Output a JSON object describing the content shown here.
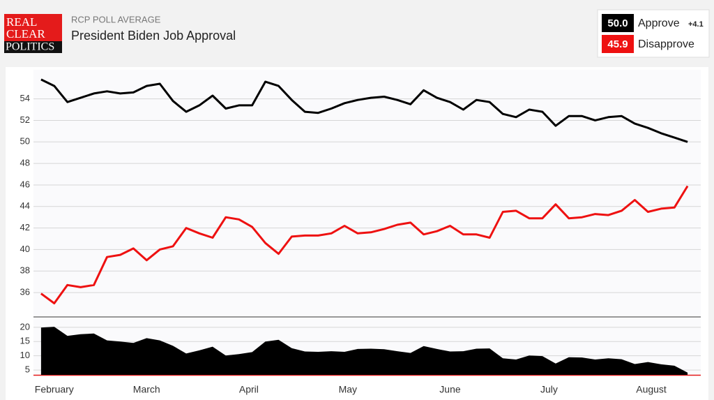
{
  "header": {
    "logo": [
      "REAL",
      "CLEAR",
      "POLITICS"
    ],
    "kicker": "RCP POLL AVERAGE"
  },
  "chart_data": [
    {
      "type": "line",
      "title": "President Biden Job Approval",
      "spread_label": "+4.1",
      "x": [
        -4,
        0,
        4,
        8,
        12,
        16,
        20,
        24,
        28,
        32,
        36,
        40,
        44,
        48,
        52,
        56,
        60,
        64,
        68,
        72,
        76,
        80,
        84,
        88,
        92,
        96,
        100,
        104,
        108,
        112,
        116,
        120,
        124,
        128,
        132,
        136,
        140,
        144,
        148,
        152,
        156,
        160,
        164,
        168,
        172,
        176,
        180,
        184,
        188,
        192
      ],
      "xlim": [
        -6.3,
        196
      ],
      "ylim": [
        33.8,
        56.7
      ],
      "yticks": [
        36,
        38,
        40,
        42,
        44,
        46,
        48,
        50,
        52,
        54
      ],
      "grid": true,
      "series": [
        {
          "name": "Approve",
          "color": "#000000",
          "current_label": "50.0",
          "values": [
            55.8,
            55.2,
            53.7,
            54.1,
            54.5,
            54.7,
            54.5,
            54.6,
            55.2,
            55.4,
            53.8,
            52.8,
            53.4,
            54.3,
            53.1,
            53.4,
            53.4,
            55.6,
            55.2,
            53.9,
            52.8,
            52.7,
            53.1,
            53.6,
            53.9,
            54.1,
            54.2,
            53.9,
            53.5,
            54.8,
            54.1,
            53.7,
            53.0,
            53.9,
            53.7,
            52.6,
            52.3,
            53.0,
            52.8,
            51.5,
            52.4,
            52.4,
            52.0,
            52.3,
            52.4,
            51.7,
            51.3,
            50.8,
            50.4,
            50.0
          ]
        },
        {
          "name": "Disapprove",
          "color": "#ee1111",
          "current_label": "45.9",
          "values": [
            35.9,
            35.0,
            36.7,
            36.5,
            36.7,
            39.3,
            39.5,
            40.1,
            39.0,
            40.0,
            40.3,
            42.0,
            41.5,
            41.1,
            43.0,
            42.8,
            42.1,
            40.6,
            39.6,
            41.2,
            41.3,
            41.3,
            41.5,
            42.2,
            41.5,
            41.6,
            41.9,
            42.3,
            42.5,
            41.4,
            41.7,
            42.2,
            41.4,
            41.4,
            41.1,
            43.5,
            43.6,
            42.9,
            42.9,
            44.2,
            42.9,
            43.0,
            43.3,
            43.2,
            43.6,
            44.6,
            43.5,
            43.8,
            43.9,
            45.9
          ]
        }
      ]
    },
    {
      "type": "area",
      "color": "#000000",
      "x": [
        -4,
        0,
        4,
        8,
        12,
        16,
        20,
        24,
        28,
        32,
        36,
        40,
        44,
        48,
        52,
        56,
        60,
        64,
        68,
        72,
        76,
        80,
        84,
        88,
        92,
        96,
        100,
        104,
        108,
        112,
        116,
        120,
        124,
        128,
        132,
        136,
        140,
        144,
        148,
        152,
        156,
        160,
        164,
        168,
        172,
        176,
        180,
        184,
        188,
        192
      ],
      "values": [
        19.9,
        20.2,
        17.0,
        17.6,
        17.8,
        15.4,
        15.0,
        14.5,
        16.2,
        15.4,
        13.5,
        10.8,
        11.9,
        13.2,
        10.1,
        10.6,
        11.3,
        15.0,
        15.6,
        12.7,
        11.5,
        11.4,
        11.6,
        11.4,
        12.4,
        12.5,
        12.3,
        11.6,
        11.0,
        13.4,
        12.4,
        11.5,
        11.6,
        12.5,
        12.6,
        9.1,
        8.7,
        10.1,
        9.9,
        7.3,
        9.5,
        9.4,
        8.7,
        9.1,
        8.8,
        7.1,
        7.8,
        7.0,
        6.5,
        4.1
      ],
      "xlim": [
        -6.3,
        196
      ],
      "ylim": [
        3.3,
        23.4
      ],
      "yticks": [
        5,
        10,
        15,
        20
      ],
      "grid": true,
      "xticks": [
        {
          "value": 0,
          "label": "February"
        },
        {
          "value": 28,
          "label": "March"
        },
        {
          "value": 59,
          "label": "April"
        },
        {
          "value": 89,
          "label": "May"
        },
        {
          "value": 120,
          "label": "June"
        },
        {
          "value": 150,
          "label": "July"
        },
        {
          "value": 181,
          "label": "August"
        }
      ]
    }
  ]
}
